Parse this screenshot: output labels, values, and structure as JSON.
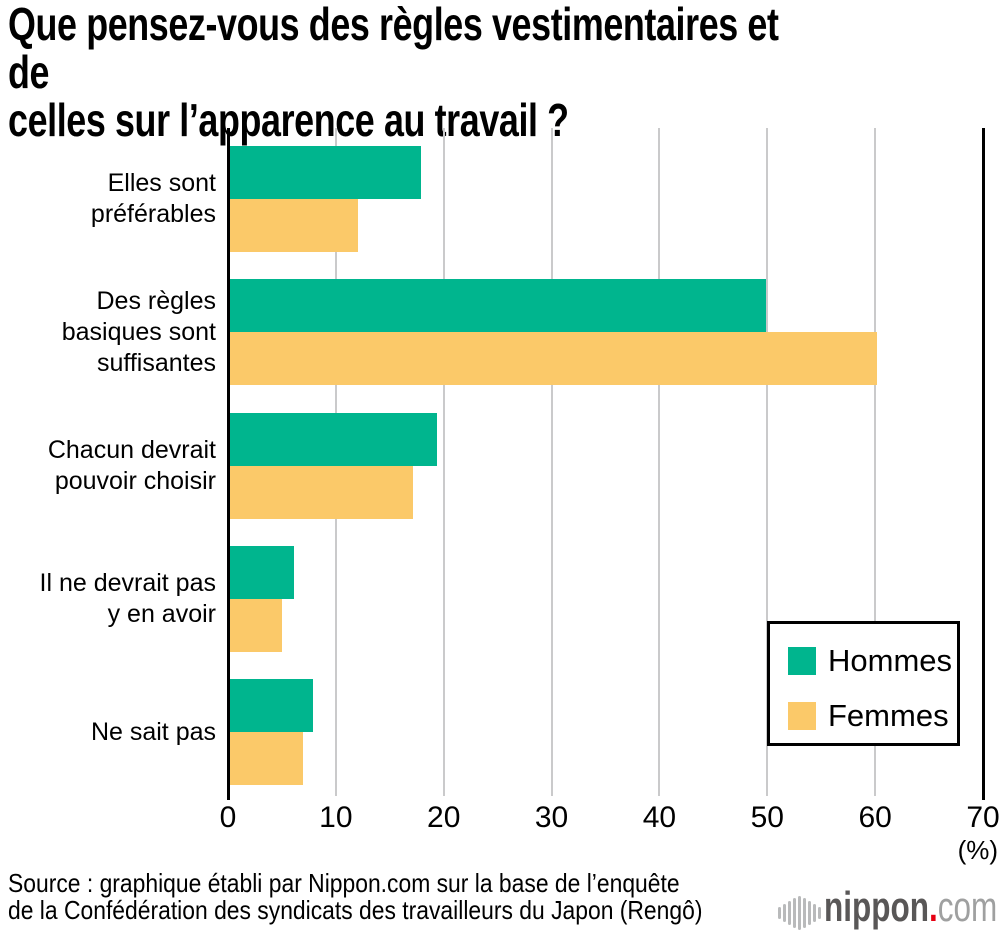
{
  "title": "Que pensez-vous des règles vestimentaires et de\ncelles sur l’apparence au travail ?",
  "chart_data": {
    "type": "bar",
    "orientation": "horizontal",
    "title": "Que pensez-vous des règles vestimentaires et de celles sur l’apparence au travail ?",
    "categories": [
      "Elles sont préférables",
      "Des règles basiques sont suffisantes",
      "Chacun devrait pouvoir choisir",
      "Il ne devrait pas y en avoir",
      "Ne sait pas"
    ],
    "categories_display": [
      "Elles sont\npréférables",
      "Des règles\nbasiques sont\nsuffisantes",
      "Chacun devrait\npouvoir choisir",
      "Il ne devrait pas\ny en avoir",
      "Ne sait pas"
    ],
    "series": [
      {
        "name": "Hommes",
        "color": "#00B58E",
        "values": [
          17.8,
          49.8,
          19.3,
          6.0,
          7.8
        ]
      },
      {
        "name": "Femmes",
        "color": "#FBC969",
        "values": [
          12.0,
          60.1,
          17.1,
          4.9,
          6.9
        ]
      }
    ],
    "xlim": [
      0,
      70
    ],
    "xticks": [
      0,
      10,
      20,
      30,
      40,
      50,
      60,
      70
    ],
    "x_unit_label": "(%)",
    "grid": true,
    "legend_position": "middle-right"
  },
  "source": "Source : graphique établi par Nippon.com sur la base de l’enquête\nde la Confédération des syndicats des travailleurs du Japon (Rengô)",
  "logo": {
    "brand": "nippon",
    "dot": ".",
    "tld": "com",
    "dot_color": "#E60012"
  },
  "colors": {
    "axis": "#000000",
    "grid": "#CACACB",
    "background": "#FFFFFF"
  }
}
